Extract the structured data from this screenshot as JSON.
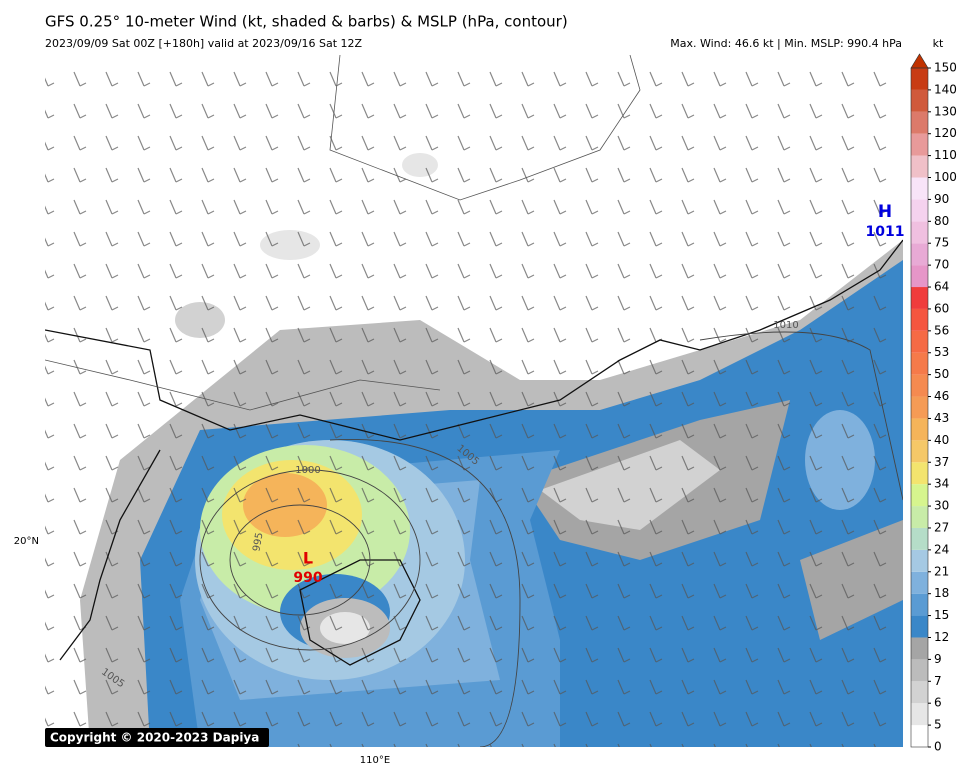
{
  "header": {
    "title": "GFS 0.25° 10-meter Wind (kt, shaded & barbs) & MSLP (hPa, contour)",
    "subtitle": "2023/09/09 Sat 00Z [+180h] valid at 2023/09/16 Sat 12Z",
    "summary": "Max. Wind: 46.6 kt | Min. MSLP: 990.4 hPa"
  },
  "colorbar": {
    "unit": "kt",
    "levels": [
      0,
      5,
      6,
      7,
      9,
      12,
      15,
      18,
      21,
      24,
      27,
      30,
      34,
      37,
      40,
      43,
      46,
      50,
      53,
      56,
      60,
      64,
      70,
      75,
      80,
      90,
      100,
      110,
      120,
      130,
      140,
      150
    ],
    "colors": [
      "#ffffff",
      "#e6e6e6",
      "#d2d2d2",
      "#bcbcbc",
      "#a5a5a5",
      "#3a87c8",
      "#5a9bd3",
      "#7fb1dd",
      "#a5c9e3",
      "#b5ddc8",
      "#c8eca8",
      "#d6f58e",
      "#f3e46e",
      "#f5c868",
      "#f5b45a",
      "#f59b55",
      "#f58a50",
      "#f57a4a",
      "#f56a45",
      "#f5553f",
      "#f03c3c",
      "#e696c8",
      "#e8aad5",
      "#f0c0e0",
      "#f5d2ee",
      "#f8e4f8",
      "#f0c0c8",
      "#e89a9a",
      "#dc7a6a",
      "#d05a3c",
      "#c83c14"
    ],
    "over_color": "#c03200"
  },
  "map": {
    "high": {
      "symbol": "H",
      "pressure": "1011"
    },
    "low": {
      "symbol": "L",
      "pressure": "990"
    },
    "contour_labels": [
      "1010",
      "1005",
      "1000",
      "995",
      "1005"
    ],
    "lat_label": "20°N",
    "lon_label": "110°E"
  },
  "footer": {
    "copyright": "Copyright © 2020-2023 Dapiya"
  }
}
